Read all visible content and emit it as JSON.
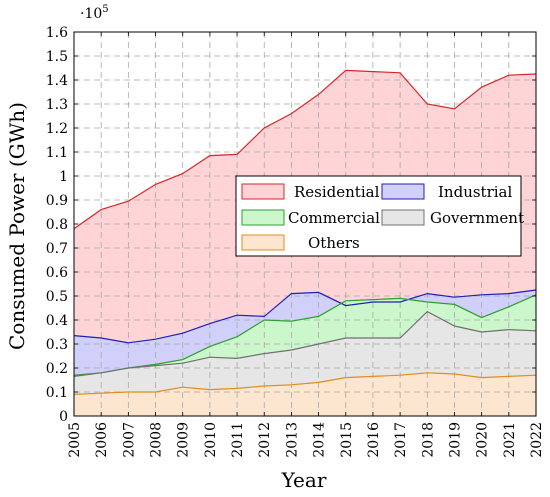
{
  "chart_data": {
    "type": "area",
    "xlabel": "Year",
    "ylabel": "Consumed Power (GWh)",
    "y_multiplier_label": "·10",
    "y_multiplier_exponent": "5",
    "x": [
      2005,
      2006,
      2007,
      2008,
      2009,
      2010,
      2011,
      2012,
      2013,
      2014,
      2015,
      2016,
      2017,
      2018,
      2019,
      2020,
      2021,
      2022
    ],
    "xlim": [
      2005,
      2022
    ],
    "ylim": [
      0,
      1.6
    ],
    "y_ticks": [
      "0",
      "0.1",
      "0.2",
      "0.3",
      "0.4",
      "0.5",
      "0.6",
      "0.7",
      "0.8",
      "0.9",
      "1",
      "1.1",
      "1.2",
      "1.3",
      "1.4",
      "1.5",
      "1.6"
    ],
    "grid": true,
    "legend_position": "center-right",
    "series": [
      {
        "name": "Residential",
        "color": "#d62728",
        "fill": "#ffd4d6",
        "values": [
          0.78,
          0.86,
          0.895,
          0.965,
          1.01,
          1.085,
          1.09,
          1.2,
          1.26,
          1.34,
          1.44,
          1.435,
          1.43,
          1.3,
          1.28,
          1.37,
          1.42,
          1.425
        ]
      },
      {
        "name": "Industrial",
        "color": "#1f1fb4",
        "fill": "#d0d0fa",
        "values": [
          0.335,
          0.325,
          0.305,
          0.32,
          0.345,
          0.385,
          0.42,
          0.415,
          0.51,
          0.515,
          0.46,
          0.475,
          0.475,
          0.51,
          0.495,
          0.505,
          0.51,
          0.525
        ]
      },
      {
        "name": "Commercial",
        "color": "#2ca02c",
        "fill": "#ccf7cc",
        "values": [
          0.17,
          0.18,
          0.2,
          0.215,
          0.235,
          0.29,
          0.33,
          0.4,
          0.395,
          0.415,
          0.48,
          0.485,
          0.49,
          0.475,
          0.465,
          0.41,
          0.455,
          0.505
        ]
      },
      {
        "name": "Government",
        "color": "#707070",
        "fill": "#e6e6e6",
        "values": [
          0.165,
          0.18,
          0.2,
          0.21,
          0.22,
          0.245,
          0.24,
          0.26,
          0.275,
          0.3,
          0.325,
          0.325,
          0.325,
          0.435,
          0.375,
          0.35,
          0.36,
          0.355
        ]
      },
      {
        "name": "Others",
        "color": "#e08c20",
        "fill": "#fde6cf",
        "values": [
          0.09,
          0.095,
          0.1,
          0.1,
          0.12,
          0.11,
          0.115,
          0.125,
          0.13,
          0.14,
          0.16,
          0.165,
          0.17,
          0.18,
          0.175,
          0.16,
          0.165,
          0.17
        ]
      }
    ]
  }
}
